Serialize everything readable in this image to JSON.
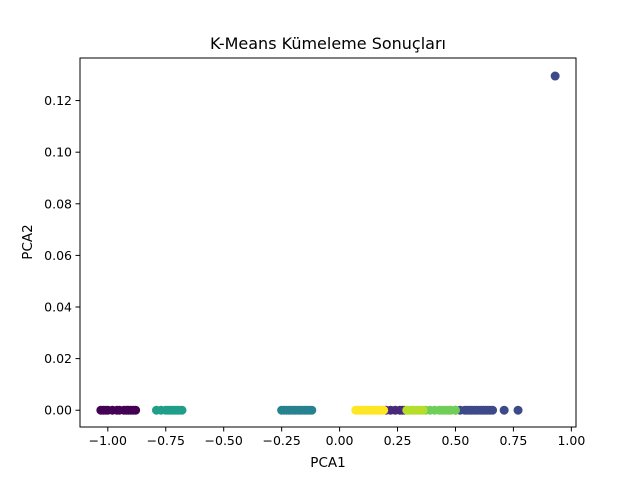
{
  "chart_data": {
    "type": "scatter",
    "title": "K-Means Kümeleme Sonuçları",
    "xlabel": "PCA1",
    "ylabel": "PCA2",
    "xlim": [
      -1.12,
      1.02
    ],
    "ylim": [
      -0.0065,
      0.1365
    ],
    "xticks": [
      -1.0,
      -0.75,
      -0.5,
      -0.25,
      0.0,
      0.25,
      0.5,
      0.75,
      1.0
    ],
    "xtick_labels": [
      "−1.00",
      "−0.75",
      "−0.50",
      "−0.25",
      "0.00",
      "0.25",
      "0.50",
      "0.75",
      "1.00"
    ],
    "yticks": [
      0.0,
      0.02,
      0.04,
      0.06,
      0.08,
      0.1,
      0.12
    ],
    "ytick_labels": [
      "0.00",
      "0.02",
      "0.04",
      "0.06",
      "0.08",
      "0.10",
      "0.12"
    ],
    "grid": false,
    "series": [
      {
        "color": "#440154",
        "points": [
          [
            -1.03,
            0
          ],
          [
            -1.02,
            0
          ],
          [
            -1.01,
            0
          ],
          [
            -1.0,
            0
          ],
          [
            -0.98,
            0
          ],
          [
            -0.96,
            0
          ],
          [
            -0.95,
            0
          ],
          [
            -0.93,
            0
          ],
          [
            -0.92,
            0
          ],
          [
            -0.91,
            0
          ],
          [
            -0.9,
            0
          ],
          [
            -0.89,
            0
          ],
          [
            -0.88,
            0
          ]
        ]
      },
      {
        "color": "#482878",
        "points": [
          [
            0.2,
            0
          ],
          [
            0.22,
            0
          ],
          [
            0.24,
            0
          ],
          [
            0.26,
            0
          ],
          [
            0.27,
            0
          ],
          [
            0.28,
            0
          ]
        ]
      },
      {
        "color": "#3e4989",
        "points": [
          [
            0.5,
            0
          ],
          [
            0.52,
            0
          ],
          [
            0.54,
            0
          ],
          [
            0.55,
            0
          ],
          [
            0.56,
            0
          ],
          [
            0.57,
            0
          ],
          [
            0.58,
            0
          ],
          [
            0.59,
            0
          ],
          [
            0.6,
            0
          ],
          [
            0.61,
            0
          ],
          [
            0.62,
            0
          ],
          [
            0.63,
            0
          ],
          [
            0.64,
            0
          ],
          [
            0.65,
            0
          ],
          [
            0.66,
            0
          ],
          [
            0.71,
            0
          ],
          [
            0.77,
            0
          ],
          [
            0.93,
            0.1295
          ]
        ]
      },
      {
        "color": "#31688e",
        "points": []
      },
      {
        "color": "#26828e",
        "points": [
          [
            -0.25,
            0
          ],
          [
            -0.24,
            0
          ],
          [
            -0.23,
            0
          ],
          [
            -0.22,
            0
          ],
          [
            -0.21,
            0
          ],
          [
            -0.2,
            0
          ],
          [
            -0.19,
            0
          ],
          [
            -0.18,
            0
          ],
          [
            -0.17,
            0
          ],
          [
            -0.16,
            0
          ],
          [
            -0.15,
            0
          ],
          [
            -0.14,
            0
          ],
          [
            -0.13,
            0
          ],
          [
            -0.12,
            0
          ]
        ]
      },
      {
        "color": "#1f9e89",
        "points": [
          [
            -0.79,
            0
          ],
          [
            -0.77,
            0
          ],
          [
            -0.75,
            0
          ],
          [
            -0.74,
            0
          ],
          [
            -0.73,
            0
          ],
          [
            -0.72,
            0
          ],
          [
            -0.71,
            0
          ],
          [
            -0.7,
            0
          ],
          [
            -0.69,
            0
          ],
          [
            -0.68,
            0
          ]
        ]
      },
      {
        "color": "#35b779",
        "points": []
      },
      {
        "color": "#6ece58",
        "points": [
          [
            0.37,
            0
          ],
          [
            0.39,
            0
          ],
          [
            0.41,
            0
          ],
          [
            0.43,
            0
          ],
          [
            0.44,
            0
          ],
          [
            0.45,
            0
          ],
          [
            0.46,
            0
          ],
          [
            0.47,
            0
          ],
          [
            0.48,
            0
          ],
          [
            0.5,
            0
          ]
        ]
      },
      {
        "color": "#b5de2b",
        "points": [
          [
            0.29,
            0
          ],
          [
            0.3,
            0
          ],
          [
            0.31,
            0
          ],
          [
            0.32,
            0
          ],
          [
            0.33,
            0
          ],
          [
            0.34,
            0
          ],
          [
            0.35,
            0
          ],
          [
            0.36,
            0
          ]
        ]
      },
      {
        "color": "#fde725",
        "points": [
          [
            0.07,
            0
          ],
          [
            0.08,
            0
          ],
          [
            0.09,
            0
          ],
          [
            0.1,
            0
          ],
          [
            0.11,
            0
          ],
          [
            0.12,
            0
          ],
          [
            0.13,
            0
          ],
          [
            0.14,
            0
          ],
          [
            0.15,
            0
          ],
          [
            0.16,
            0
          ],
          [
            0.17,
            0
          ],
          [
            0.18,
            0
          ],
          [
            0.19,
            0
          ]
        ]
      }
    ]
  }
}
